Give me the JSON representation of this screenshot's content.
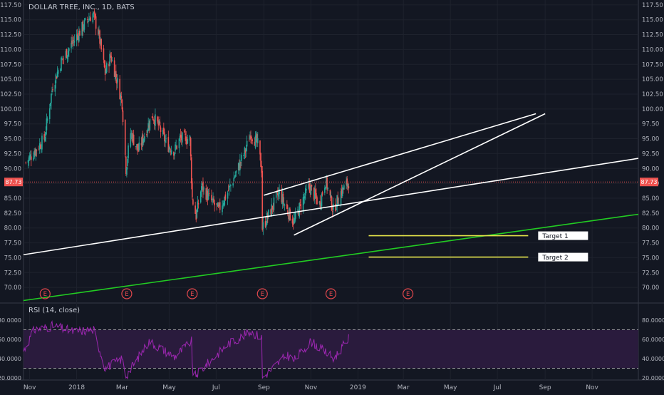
{
  "chart_data": [
    {
      "type": "candlestick",
      "title": "DOLLAR TREE, INC., 1D, BATS",
      "x_ticks": [
        "Nov",
        "2018",
        "Mar",
        "May",
        "Jul",
        "Sep",
        "Nov",
        "2019",
        "Mar",
        "May",
        "Jul",
        "Sep",
        "Nov"
      ],
      "y_ticks": [
        "70.00",
        "72.50",
        "75.00",
        "77.50",
        "80.00",
        "82.50",
        "85.00",
        "87.50",
        "90.00",
        "92.50",
        "95.00",
        "97.50",
        "100.00",
        "102.50",
        "105.00",
        "107.50",
        "110.00",
        "112.50",
        "115.00",
        "117.50"
      ],
      "ylim": [
        67.5,
        118.2
      ],
      "grid": true,
      "current_price": "87.73",
      "current_price_value": 87.73,
      "earnings_marker": "E",
      "price_path": [
        [
          "2017-10-27",
          91
        ],
        [
          "2017-11-08",
          93
        ],
        [
          "2017-11-20",
          95
        ],
        [
          "2017-12-01",
          104
        ],
        [
          "2017-12-12",
          108
        ],
        [
          "2017-12-26",
          111
        ],
        [
          "2018-01-05",
          113
        ],
        [
          "2018-01-15",
          115
        ],
        [
          "2018-01-22",
          116
        ],
        [
          "2018-01-29",
          113
        ],
        [
          "2018-02-07",
          106
        ],
        [
          "2018-02-14",
          109
        ],
        [
          "2018-02-22",
          105
        ],
        [
          "2018-03-01",
          101
        ],
        [
          "2018-03-06",
          90
        ],
        [
          "2018-03-12",
          96
        ],
        [
          "2018-03-22",
          93
        ],
        [
          "2018-03-28",
          95
        ],
        [
          "2018-04-09",
          99
        ],
        [
          "2018-04-18",
          97
        ],
        [
          "2018-04-28",
          94
        ],
        [
          "2018-05-08",
          93
        ],
        [
          "2018-05-15",
          95
        ],
        [
          "2018-05-28",
          95
        ],
        [
          "2018-05-31",
          85
        ],
        [
          "2018-06-05",
          82
        ],
        [
          "2018-06-12",
          87
        ],
        [
          "2018-06-22",
          85
        ],
        [
          "2018-07-04",
          83
        ],
        [
          "2018-07-16",
          86
        ],
        [
          "2018-07-26",
          89
        ],
        [
          "2018-08-08",
          93
        ],
        [
          "2018-08-15",
          96
        ],
        [
          "2018-08-24",
          94
        ],
        [
          "2018-08-29",
          90
        ],
        [
          "2018-08-30",
          80
        ],
        [
          "2018-09-10",
          83
        ],
        [
          "2018-09-21",
          86
        ],
        [
          "2018-10-01",
          83
        ],
        [
          "2018-10-10",
          81
        ],
        [
          "2018-10-19",
          84
        ],
        [
          "2018-10-30",
          87
        ],
        [
          "2018-11-12",
          84
        ],
        [
          "2018-11-20",
          88
        ],
        [
          "2018-11-30",
          83
        ],
        [
          "2018-12-10",
          86
        ],
        [
          "2018-12-20",
          87.73
        ]
      ],
      "earnings_dates": [
        "2017-11-21",
        "2018-03-07",
        "2018-05-31",
        "2018-08-30",
        "2018-11-27",
        "2019-03-07"
      ],
      "trendlines": [
        {
          "color": "#ffffff",
          "from": [
            "2017-10-24",
            75.5
          ],
          "to": [
            "2019-12-31",
            91.7
          ]
        },
        {
          "color": "#ffffff",
          "from": [
            "2018-09-01",
            85.5
          ],
          "to": [
            "2019-08-20",
            99.2
          ]
        },
        {
          "color": "#ffffff",
          "from": [
            "2018-10-10",
            78.8
          ],
          "to": [
            "2019-09-01",
            99.2
          ]
        },
        {
          "color": "#22cc22",
          "from": [
            "2017-10-24",
            67.8
          ],
          "to": [
            "2019-12-31",
            82.3
          ]
        }
      ],
      "targets": [
        {
          "label": "Target 1",
          "value": 78.7,
          "from": "2019-01-15",
          "to": "2019-08-10",
          "color": "#e5e54a"
        },
        {
          "label": "Target 2",
          "value": 75.1,
          "from": "2019-01-15",
          "to": "2019-08-10",
          "color": "#e5e54a"
        }
      ],
      "colors": {
        "up": "#26a69a",
        "down": "#ef5350",
        "price_line": "#ef5350",
        "background": "#131722"
      }
    },
    {
      "type": "line",
      "title": "RSI (14, close)",
      "y_ticks": [
        "20.0000",
        "40.0000",
        "60.0000",
        "80.0000"
      ],
      "ylim": [
        18,
        84
      ],
      "bands": [
        30,
        70
      ],
      "rsi_path": [
        [
          "2017-10-24",
          48
        ],
        [
          "2017-11-07",
          70
        ],
        [
          "2017-12-01",
          74
        ],
        [
          "2017-12-28",
          68
        ],
        [
          "2018-01-23",
          70
        ],
        [
          "2018-02-07",
          30
        ],
        [
          "2018-03-01",
          40
        ],
        [
          "2018-03-06",
          22
        ],
        [
          "2018-04-05",
          58
        ],
        [
          "2018-05-08",
          42
        ],
        [
          "2018-05-30",
          58
        ],
        [
          "2018-06-01",
          20
        ],
        [
          "2018-07-16",
          55
        ],
        [
          "2018-08-15",
          68
        ],
        [
          "2018-08-29",
          62
        ],
        [
          "2018-08-30",
          20
        ],
        [
          "2018-10-01",
          44
        ],
        [
          "2018-10-10",
          38
        ],
        [
          "2018-11-01",
          58
        ],
        [
          "2018-12-01",
          40
        ],
        [
          "2018-12-20",
          61
        ]
      ],
      "colors": {
        "line": "#9c27b0",
        "band_fill": "#2a1b3d",
        "band_edge": "#c0c0c0"
      }
    }
  ]
}
